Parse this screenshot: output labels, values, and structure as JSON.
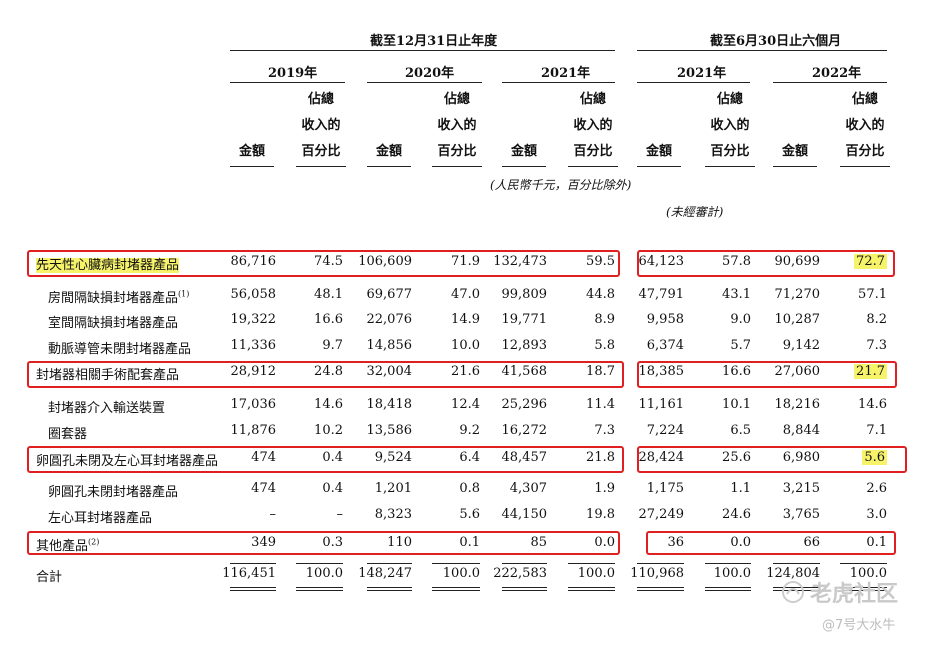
{
  "header": {
    "group_year": "截至12月31日止年度",
    "group_half": "截至6月30日止六個月",
    "years": [
      "2019年",
      "2020年",
      "2021年",
      "2021年",
      "2022年"
    ],
    "col_amount": "金額",
    "col_pct_lines": [
      "佔總",
      "收入的",
      "百分比"
    ]
  },
  "notes": {
    "currency": "(人民幣千元，百分比除外)",
    "unaudited": "(未經審計)"
  },
  "rows": [
    {
      "label": "先天性心臟病封堵器產品",
      "values": [
        "86,716",
        "74.5",
        "106,609",
        "71.9",
        "132,473",
        "59.5",
        "64,123",
        "57.8",
        "90,699",
        "72.7"
      ]
    },
    {
      "label": "房間隔缺損封堵器產品",
      "sup": "(1)",
      "values": [
        "56,058",
        "48.1",
        "69,677",
        "47.0",
        "99,809",
        "44.8",
        "47,791",
        "43.1",
        "71,270",
        "57.1"
      ]
    },
    {
      "label": "室間隔缺損封堵器產品",
      "values": [
        "19,322",
        "16.6",
        "22,076",
        "14.9",
        "19,771",
        "8.9",
        "9,958",
        "9.0",
        "10,287",
        "8.2"
      ]
    },
    {
      "label": "動脈導管未閉封堵器產品",
      "values": [
        "11,336",
        "9.7",
        "14,856",
        "10.0",
        "12,893",
        "5.8",
        "6,374",
        "5.7",
        "9,142",
        "7.3"
      ]
    },
    {
      "label": "封堵器相關手術配套產品",
      "values": [
        "28,912",
        "24.8",
        "32,004",
        "21.6",
        "41,568",
        "18.7",
        "18,385",
        "16.6",
        "27,060",
        "21.7"
      ]
    },
    {
      "label": "封堵器介入輸送裝置",
      "values": [
        "17,036",
        "14.6",
        "18,418",
        "12.4",
        "25,296",
        "11.4",
        "11,161",
        "10.1",
        "18,216",
        "14.6"
      ]
    },
    {
      "label": "圈套器",
      "values": [
        "11,876",
        "10.2",
        "13,586",
        "9.2",
        "16,272",
        "7.3",
        "7,224",
        "6.5",
        "8,844",
        "7.1"
      ]
    },
    {
      "label": "卵圓孔未閉及左心耳封堵器產品",
      "values": [
        "474",
        "0.4",
        "9,524",
        "6.4",
        "48,457",
        "21.8",
        "28,424",
        "25.6",
        "6,980",
        "5.6"
      ]
    },
    {
      "label": "卵圓孔未閉封堵器產品",
      "values": [
        "474",
        "0.4",
        "1,201",
        "0.8",
        "4,307",
        "1.9",
        "1,175",
        "1.1",
        "3,215",
        "2.6"
      ]
    },
    {
      "label": "左心耳封堵器產品",
      "values": [
        "–",
        "–",
        "8,323",
        "5.6",
        "44,150",
        "19.8",
        "27,249",
        "24.6",
        "3,765",
        "3.0"
      ]
    },
    {
      "label": "其他產品",
      "sup": "(2)",
      "values": [
        "349",
        "0.3",
        "110",
        "0.1",
        "85",
        "0.0",
        "36",
        "0.0",
        "66",
        "0.1"
      ]
    },
    {
      "label": "合計",
      "values": [
        "116,451",
        "100.0",
        "148,247",
        "100.0",
        "222,583",
        "100.0",
        "110,968",
        "100.0",
        "124,804",
        "100.0"
      ]
    }
  ],
  "watermark": {
    "brand": "老虎社区",
    "user": "@7号大水牛"
  },
  "colors": {
    "highlight": "#f6f36b",
    "box": "#e02020"
  }
}
